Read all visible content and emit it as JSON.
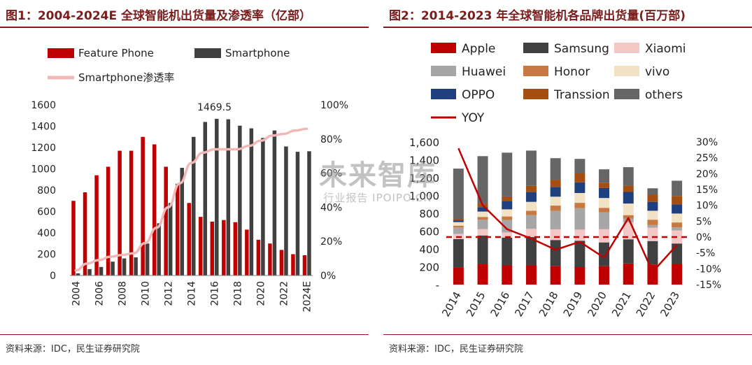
{
  "left": {
    "title": "图1：2004-2024E 全球智能机出货量及渗透率（亿部）",
    "source": "资料来源：IDC，民生证券研究院"
  },
  "right": {
    "title": "图2：2014-2023 年全球智能机各品牌出货量(百万部)",
    "source": "资料来源：IDC，民生证券研究院"
  },
  "watermark": {
    "main": "未来智库",
    "sub": "行业报告 IPOIPO.CN"
  },
  "chart_data": [
    {
      "type": "bar",
      "categories": [
        "2004",
        "2005",
        "2006",
        "2007",
        "2008",
        "2009",
        "2010",
        "2011",
        "2012",
        "2013",
        "2014",
        "2015",
        "2016",
        "2017",
        "2018",
        "2019",
        "2020",
        "2021",
        "2022",
        "2023",
        "2024E"
      ],
      "x_tick_labels": [
        "2004",
        "2006",
        "2008",
        "2010",
        "2012",
        "2014",
        "2016",
        "2018",
        "2020",
        "2022",
        "2024E"
      ],
      "series": [
        {
          "name": "Feature Phone",
          "axis": "left",
          "color": "#c00000",
          "values": [
            700,
            780,
            940,
            1020,
            1170,
            1170,
            1300,
            1230,
            1020,
            860,
            680,
            550,
            505,
            520,
            500,
            430,
            335,
            300,
            240,
            200,
            190
          ]
        },
        {
          "name": "Smartphone",
          "axis": "left",
          "color": "#404040",
          "values": [
            20,
            60,
            80,
            130,
            160,
            170,
            300,
            490,
            680,
            1010,
            1300,
            1440,
            1469.5,
            1465,
            1405,
            1380,
            1290,
            1360,
            1210,
            1160,
            1165
          ]
        },
        {
          "name": "Smartphone渗透率",
          "axis": "right",
          "type": "line",
          "color": "#f2b8b8",
          "values": [
            3,
            7,
            9,
            11,
            12,
            13,
            19,
            28,
            40,
            54,
            66,
            72,
            74,
            74,
            74,
            76,
            79,
            82,
            83,
            85,
            86
          ]
        }
      ],
      "annotation": {
        "text": "1469.5",
        "category": "2016"
      },
      "ylim_left": [
        0,
        1600
      ],
      "yticks_left": [
        "0",
        "200",
        "400",
        "600",
        "800",
        "1000",
        "1200",
        "1400",
        "1600"
      ],
      "ylim_right": [
        0,
        100
      ],
      "yticks_right": [
        "0%",
        "20%",
        "40%",
        "60%",
        "80%",
        "100%"
      ],
      "legend": "top"
    },
    {
      "type": "bar",
      "stacked": true,
      "categories": [
        "2014",
        "2015",
        "2016",
        "2017",
        "2018",
        "2019",
        "2020",
        "2021",
        "2022",
        "2023"
      ],
      "series": [
        {
          "name": "Apple",
          "color": "#c00000",
          "values": [
            193,
            231,
            216,
            216,
            209,
            196,
            206,
            237,
            226,
            235
          ]
        },
        {
          "name": "Samsung",
          "color": "#404040",
          "values": [
            318,
            320,
            311,
            317,
            291,
            296,
            267,
            271,
            262,
            226
          ]
        },
        {
          "name": "Xiaomi",
          "color": "#f4c7c7",
          "values": [
            57,
            71,
            58,
            92,
            120,
            125,
            148,
            191,
            150,
            146
          ]
        },
        {
          "name": "Huawei",
          "color": "#a6a6a6",
          "values": [
            73,
            107,
            139,
            153,
            206,
            240,
            190,
            40,
            30,
            35
          ]
        },
        {
          "name": "Honor",
          "color": "#c87941",
          "values": [
            20,
            30,
            40,
            50,
            60,
            60,
            50,
            40,
            60,
            55
          ]
        },
        {
          "name": "vivo",
          "color": "#f2e2c4",
          "values": [
            40,
            60,
            80,
            100,
            100,
            110,
            110,
            130,
            100,
            100
          ]
        },
        {
          "name": "OPPO",
          "color": "#1f3f7f",
          "values": [
            20,
            50,
            95,
            110,
            110,
            120,
            112,
            130,
            100,
            102
          ]
        },
        {
          "name": "Transsion",
          "color": "#a64d10",
          "values": [
            20,
            40,
            50,
            70,
            80,
            100,
            60,
            70,
            80,
            95
          ]
        },
        {
          "name": "others",
          "color": "#666666",
          "values": [
            560,
            532,
            491,
            395,
            242,
            163,
            150,
            208,
            72,
            171
          ]
        },
        {
          "name": "YOY",
          "type": "line",
          "axis": "right",
          "color": "#c00000",
          "values": [
            28,
            10,
            2.5,
            -0.5,
            -4,
            -1.5,
            -6.5,
            6,
            -11,
            -2.5
          ]
        }
      ],
      "ylim_left": [
        0,
        1600
      ],
      "yticks_left": [
        "-",
        "200",
        "400",
        "600",
        "800",
        "1,000",
        "1,200",
        "1,400",
        "1,600"
      ],
      "ylim_right": [
        -15,
        30
      ],
      "yticks_right": [
        "-15%",
        "-10%",
        "-5%",
        "0%",
        "5%",
        "10%",
        "15%",
        "20%",
        "25%",
        "30%"
      ],
      "legend": "top"
    }
  ]
}
